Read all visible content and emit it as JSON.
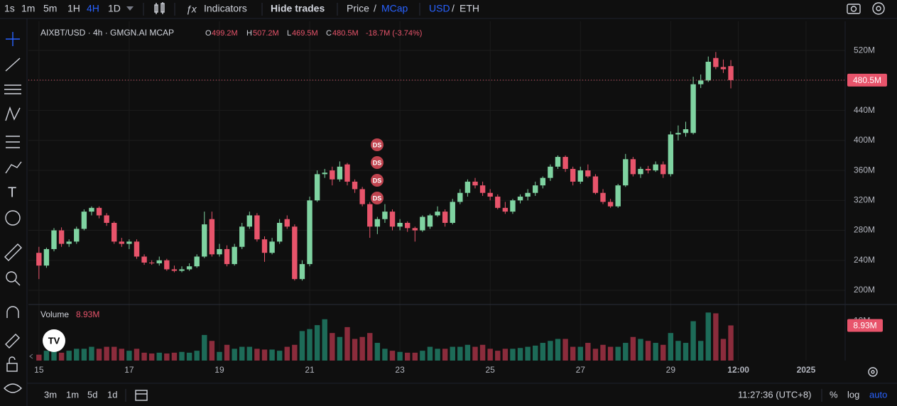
{
  "toolbar": {
    "intervals": [
      "1s",
      "1m",
      "5m",
      "1H",
      "4H",
      "1D"
    ],
    "indicators": "Indicators",
    "hide_trades": "Hide trades",
    "price": "Price",
    "slash1": "/",
    "mcap": "MCap",
    "usd": "USD",
    "slash2": "/",
    "eth": "ETH"
  },
  "bottom_bar": {
    "ranges": [
      "3m",
      "1m",
      "5d",
      "1d"
    ],
    "clock": "11:27:36 (UTC+8)",
    "percent": "%",
    "log": "log",
    "auto": "auto"
  },
  "chart_data": {
    "type": "candlestick",
    "title": "AIXBT/USD · 4h · GMGN.AI MCAP",
    "legend": {
      "o_label": "O",
      "o": "499.2M",
      "h_label": "H",
      "h": "507.2M",
      "l_label": "L",
      "l": "469.5M",
      "c_label": "C",
      "c": "480.5M",
      "change": "-18.7M (-3.74%)"
    },
    "volume_title": "Volume",
    "volume_value": "8.93M",
    "last_label": "480.5M",
    "last_volume_label": "8.93M",
    "markers": [
      "DS",
      "DS",
      "DS",
      "DS"
    ],
    "up_color": "#7fd3a1",
    "down_color": "#e8546b",
    "volume_up_color": "#1d6b58",
    "volume_down_color": "#8b2c3c",
    "grid": true,
    "ylim": [
      182,
      559
    ],
    "yticks": [
      {
        "value": 200,
        "label": "200M"
      },
      {
        "value": 240,
        "label": "240M"
      },
      {
        "value": 280,
        "label": "280M"
      },
      {
        "value": 320,
        "label": "320M"
      },
      {
        "value": 360,
        "label": "360M"
      },
      {
        "value": 400,
        "label": "400M"
      },
      {
        "value": 440,
        "label": "440M"
      },
      {
        "value": 480,
        "label": "480M"
      },
      {
        "value": 520,
        "label": "520M"
      }
    ],
    "y2lim": [
      0,
      13.7
    ],
    "y2ticks": [
      {
        "value": 10,
        "label": "10M"
      }
    ],
    "xlim": [
      -1.4,
      107.2
    ],
    "xticks": [
      {
        "value": 0,
        "label": "15"
      },
      {
        "value": 12,
        "label": "17"
      },
      {
        "value": 24,
        "label": "19"
      },
      {
        "value": 36,
        "label": "21"
      },
      {
        "value": 48,
        "label": "23"
      },
      {
        "value": 60,
        "label": "25"
      },
      {
        "value": 72,
        "label": "27"
      },
      {
        "value": 84,
        "label": "29"
      },
      {
        "value": 93,
        "label": "12:00"
      },
      {
        "value": 102,
        "label": "2025"
      }
    ],
    "candles": [
      [
        250,
        258,
        215,
        233
      ],
      [
        233,
        257,
        230,
        255
      ],
      [
        255,
        283,
        252,
        280
      ],
      [
        280,
        284,
        258,
        262
      ],
      [
        262,
        268,
        258,
        265
      ],
      [
        265,
        285,
        262,
        282
      ],
      [
        282,
        308,
        280,
        305
      ],
      [
        305,
        312,
        300,
        310
      ],
      [
        310,
        312,
        296,
        300
      ],
      [
        300,
        303,
        286,
        290
      ],
      [
        290,
        292,
        262,
        265
      ],
      [
        265,
        270,
        258,
        262
      ],
      [
        262,
        268,
        255,
        265
      ],
      [
        265,
        268,
        242,
        245
      ],
      [
        245,
        248,
        234,
        237
      ],
      [
        237,
        240,
        234,
        236
      ],
      [
        236,
        245,
        233,
        240
      ],
      [
        240,
        242,
        226,
        228
      ],
      [
        228,
        233,
        224,
        226
      ],
      [
        226,
        232,
        224,
        228
      ],
      [
        228,
        236,
        226,
        232
      ],
      [
        232,
        248,
        230,
        245
      ],
      [
        245,
        305,
        243,
        288
      ],
      [
        295,
        305,
        245,
        248
      ],
      [
        248,
        262,
        245,
        255
      ],
      [
        255,
        260,
        232,
        235
      ],
      [
        235,
        262,
        233,
        258
      ],
      [
        258,
        290,
        255,
        285
      ],
      [
        285,
        305,
        282,
        300
      ],
      [
        300,
        303,
        265,
        268
      ],
      [
        268,
        272,
        238,
        250
      ],
      [
        250,
        270,
        248,
        265
      ],
      [
        265,
        295,
        262,
        290
      ],
      [
        295,
        300,
        282,
        285
      ],
      [
        285,
        288,
        213,
        215
      ],
      [
        215,
        240,
        213,
        235
      ],
      [
        235,
        325,
        232,
        320
      ],
      [
        320,
        360,
        318,
        355
      ],
      [
        355,
        362,
        350,
        357
      ],
      [
        360,
        365,
        340,
        348
      ],
      [
        348,
        372,
        345,
        365
      ],
      [
        368,
        370,
        340,
        345
      ],
      [
        345,
        348,
        330,
        335
      ],
      [
        335,
        338,
        312,
        315
      ],
      [
        315,
        318,
        270,
        285
      ],
      [
        285,
        298,
        275,
        295
      ],
      [
        295,
        315,
        290,
        305
      ],
      [
        305,
        308,
        280,
        285
      ],
      [
        285,
        295,
        280,
        290
      ],
      [
        290,
        292,
        278,
        283
      ],
      [
        283,
        285,
        265,
        280
      ],
      [
        280,
        300,
        278,
        298
      ],
      [
        285,
        302,
        282,
        300
      ],
      [
        300,
        312,
        298,
        305
      ],
      [
        305,
        308,
        285,
        290
      ],
      [
        290,
        322,
        288,
        318
      ],
      [
        318,
        335,
        315,
        330
      ],
      [
        330,
        348,
        325,
        345
      ],
      [
        345,
        350,
        336,
        340
      ],
      [
        340,
        345,
        326,
        330
      ],
      [
        330,
        335,
        320,
        325
      ],
      [
        325,
        328,
        308,
        310
      ],
      [
        310,
        318,
        302,
        305
      ],
      [
        305,
        322,
        302,
        320
      ],
      [
        320,
        328,
        316,
        325
      ],
      [
        325,
        335,
        320,
        330
      ],
      [
        330,
        345,
        326,
        340
      ],
      [
        340,
        352,
        336,
        350
      ],
      [
        350,
        368,
        346,
        365
      ],
      [
        365,
        380,
        362,
        378
      ],
      [
        378,
        380,
        358,
        362
      ],
      [
        362,
        365,
        340,
        345
      ],
      [
        345,
        365,
        342,
        360
      ],
      [
        360,
        368,
        350,
        352
      ],
      [
        352,
        355,
        328,
        330
      ],
      [
        330,
        335,
        315,
        318
      ],
      [
        318,
        322,
        310,
        312
      ],
      [
        312,
        342,
        310,
        340
      ],
      [
        340,
        382,
        338,
        375
      ],
      [
        375,
        378,
        352,
        355
      ],
      [
        355,
        365,
        350,
        362
      ],
      [
        362,
        366,
        356,
        360
      ],
      [
        360,
        372,
        358,
        368
      ],
      [
        368,
        372,
        350,
        355
      ],
      [
        355,
        412,
        352,
        408
      ],
      [
        408,
        420,
        400,
        410
      ],
      [
        410,
        425,
        405,
        415
      ],
      [
        410,
        485,
        408,
        475
      ],
      [
        475,
        488,
        470,
        480
      ],
      [
        480,
        512,
        478,
        505
      ],
      [
        510,
        518,
        495,
        498
      ],
      [
        498,
        508,
        490,
        495
      ],
      [
        499.2,
        507.2,
        469.5,
        480.5
      ]
    ],
    "volumes": [
      1.5,
      2.5,
      3,
      2,
      2.5,
      3,
      3,
      3.5,
      3,
      3.5,
      3.5,
      3,
      2.5,
      3,
      2,
      1.8,
      2,
      1.8,
      2,
      2.2,
      2,
      2.5,
      6.5,
      5,
      2.2,
      4,
      3,
      3.5,
      3.5,
      3,
      2.8,
      2.8,
      2.5,
      3.5,
      4,
      7.5,
      8,
      9,
      10.5,
      7,
      6,
      8.5,
      5.5,
      6,
      7,
      4.5,
      3,
      2.5,
      2.2,
      2,
      2,
      2.5,
      3.5,
      3,
      3,
      3.5,
      3.5,
      4,
      3.5,
      4,
      3,
      2.5,
      3,
      3,
      3.2,
      3.5,
      3.8,
      4.5,
      5,
      5.5,
      5.5,
      3.5,
      3.5,
      4.5,
      3,
      4,
      3.5,
      3.5,
      4.5,
      6,
      5.5,
      5,
      4.5,
      4,
      7,
      5,
      4.5,
      10,
      5,
      12.2,
      12,
      5.5,
      8.93
    ]
  }
}
